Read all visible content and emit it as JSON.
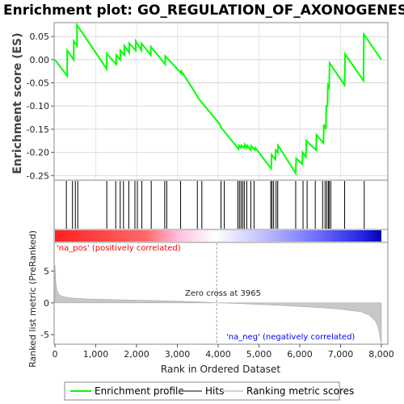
{
  "colors": {
    "enrichment_line": "#00ff00",
    "hits": "#000000",
    "ranking_fill": "#c8c8c8",
    "pos_label": "#ff0000",
    "neg_label": "#0000ff",
    "zero_cross_line": "#a0a0a0"
  },
  "chart_data": [
    {
      "type": "line",
      "title": "Enrichment plot: GO_REGULATION_OF_AXONOGENESIS",
      "ylabel": "Enrichment score (ES)",
      "xlim": [
        0,
        8000
      ],
      "ylim": [
        -0.26,
        0.08
      ],
      "yticks": [
        0.05,
        0.0,
        -0.05,
        -0.1,
        -0.15,
        -0.2,
        -0.25
      ],
      "ytick_labels": [
        "0.05",
        "0.00",
        "-0.05",
        "-0.10",
        "-0.15",
        "-0.20",
        "-0.25"
      ],
      "grid": true,
      "series": [
        {
          "name": "Enrichment profile",
          "x": [
            0,
            300,
            301,
            460,
            461,
            540,
            541,
            1270,
            1271,
            1500,
            1501,
            1600,
            1601,
            1700,
            1701,
            1820,
            1821,
            1980,
            1981,
            2120,
            2121,
            2350,
            2351,
            2700,
            2701,
            3100,
            3101,
            3500,
            3501,
            4050,
            4060,
            4500,
            4510,
            4560,
            4570,
            4640,
            4650,
            4700,
            4710,
            4800,
            4810,
            4900,
            4910,
            5300,
            5310,
            5400,
            5410,
            5460,
            5470,
            5900,
            5910,
            6060,
            6070,
            6150,
            6160,
            6400,
            6410,
            6580,
            6590,
            6640,
            6650,
            6680,
            6690,
            6720,
            6730,
            7100,
            7110,
            7560,
            7570,
            8000
          ],
          "y": [
            0.0,
            -0.035,
            0.02,
            0.0,
            0.04,
            0.03,
            0.075,
            -0.02,
            0.013,
            -0.01,
            0.01,
            0.0,
            0.02,
            0.01,
            0.03,
            0.015,
            0.035,
            0.02,
            0.04,
            0.02,
            0.035,
            0.01,
            0.028,
            -0.01,
            0.008,
            -0.03,
            -0.025,
            -0.08,
            -0.082,
            -0.14,
            -0.145,
            -0.193,
            -0.185,
            -0.19,
            -0.185,
            -0.19,
            -0.183,
            -0.19,
            -0.185,
            -0.195,
            -0.186,
            -0.195,
            -0.19,
            -0.235,
            -0.205,
            -0.215,
            -0.195,
            -0.2,
            -0.185,
            -0.245,
            -0.213,
            -0.225,
            -0.2,
            -0.21,
            -0.175,
            -0.195,
            -0.162,
            -0.18,
            -0.14,
            -0.15,
            -0.1,
            -0.1,
            -0.055,
            -0.06,
            -0.007,
            -0.055,
            0.012,
            -0.045,
            0.055,
            0.0
          ]
        }
      ]
    },
    {
      "type": "scatter",
      "series_role": "hits",
      "xlim": [
        0,
        8000
      ],
      "hits": [
        280,
        430,
        500,
        560,
        1270,
        1490,
        1600,
        1680,
        1810,
        1960,
        2020,
        2130,
        2360,
        2690,
        2740,
        3080,
        3490,
        3600,
        4070,
        4150,
        4480,
        4520,
        4560,
        4600,
        4640,
        4700,
        4800,
        4880,
        5290,
        5320,
        5360,
        5420,
        5460,
        5900,
        6080,
        6180,
        6380,
        6560,
        6620,
        6660,
        6700,
        6720,
        6760,
        7100,
        7580
      ]
    },
    {
      "type": "area",
      "ylabel": "Ranked list metric (PreRanked)",
      "xlabel": "Rank in Ordered Dataset",
      "xlim": [
        0,
        8000
      ],
      "ylim": [
        -6.5,
        9.5
      ],
      "xticks": [
        0,
        1000,
        2000,
        3000,
        4000,
        5000,
        6000,
        7000,
        8000
      ],
      "xtick_labels": [
        "0",
        "1,000",
        "2,000",
        "3,000",
        "4,000",
        "5,000",
        "6,000",
        "7,000",
        "8,000"
      ],
      "yticks": [
        5,
        0,
        -5
      ],
      "ytick_labels": [
        "5",
        "0",
        "-5"
      ],
      "x": [
        0,
        20,
        50,
        100,
        200,
        400,
        800,
        1500,
        2500,
        3500,
        3965,
        4500,
        5500,
        6500,
        7000,
        7500,
        7700,
        7850,
        7920,
        7960,
        7990,
        8000
      ],
      "y": [
        6.0,
        3.2,
        2.0,
        1.3,
        0.95,
        0.75,
        0.6,
        0.5,
        0.35,
        0.15,
        0.0,
        -0.1,
        -0.4,
        -0.75,
        -1.0,
        -1.4,
        -1.9,
        -2.8,
        -3.8,
        -5.0,
        -6.3,
        -6.3
      ],
      "annotations": {
        "pos_label": "'na_pos' (positively correlated)",
        "neg_label": "'na_neg' (negatively correlated)",
        "zero_cross": "Zero cross at 3965",
        "zero_cross_x": 3965
      }
    }
  ],
  "legend": {
    "items": [
      {
        "label": "Enrichment profile",
        "kind": "line",
        "color": "#00ff00"
      },
      {
        "label": "Hits",
        "kind": "line",
        "color": "#808080"
      },
      {
        "label": "Ranking metric scores",
        "kind": "line",
        "color": "#d0d0d0"
      }
    ]
  }
}
